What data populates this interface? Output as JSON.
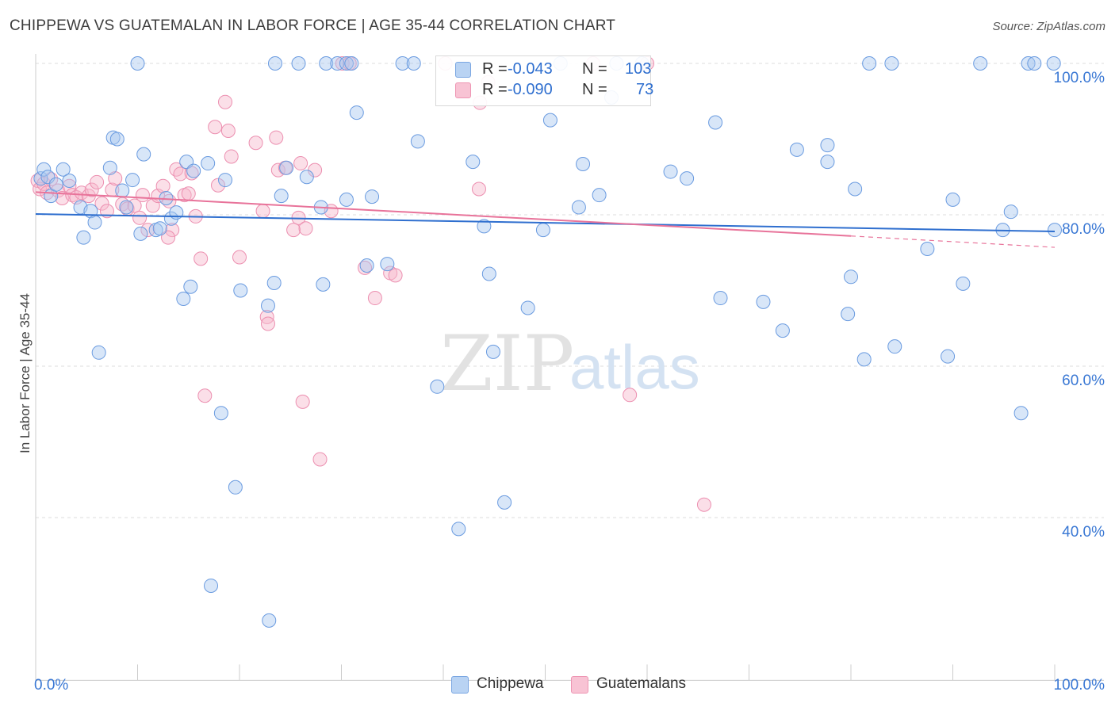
{
  "title": "CHIPPEWA VS GUATEMALAN IN LABOR FORCE | AGE 35-44 CORRELATION CHART",
  "source": "Source: ZipAtlas.com",
  "watermark": {
    "zip": "ZIP",
    "atlas": "atlas"
  },
  "legend": {
    "rows": [
      {
        "r_label": "R =",
        "r_value": "-0.043",
        "n_label": "N =",
        "n_value": "103"
      },
      {
        "r_label": "R =",
        "r_value": "-0.090",
        "n_label": "N =",
        "n_value": "73"
      }
    ]
  },
  "bottom_legend": [
    "Chippewa",
    "Guatemalans"
  ],
  "colors": {
    "chippewa_fill": "#a8c8f0",
    "chippewa_stroke": "#6a9be0",
    "chippewa_line": "#2f6fcf",
    "guatemalan_fill": "#f6b8cc",
    "guatemalan_stroke": "#ec8fb0",
    "guatemalan_line": "#e8739a",
    "axis_label": "#3a78d4",
    "grid": "#dddddd"
  },
  "chart_data": {
    "type": "scatter",
    "title": "CHIPPEWA VS GUATEMALAN IN LABOR FORCE | AGE 35-44 CORRELATION CHART",
    "xlabel": "",
    "ylabel": "In Labor Force | Age 35-44",
    "xlim": [
      0,
      100
    ],
    "ylim": [
      18.5,
      102.5
    ],
    "x_tick_labels": [
      {
        "value": 0,
        "label": "0.0%"
      },
      {
        "value": 100,
        "label": "100.0%"
      }
    ],
    "y_tick_labels": [
      {
        "value": 100,
        "label": "100.0%"
      },
      {
        "value": 80,
        "label": "80.0%"
      },
      {
        "value": 60,
        "label": "60.0%"
      },
      {
        "value": 40,
        "label": "40.0%"
      }
    ],
    "series": [
      {
        "name": "Chippewa",
        "trend": {
          "x": [
            0,
            100
          ],
          "y": [
            80.1,
            77.8
          ],
          "dashed_from": null
        },
        "points": [
          [
            0.5,
            84.8
          ],
          [
            0.8,
            86
          ],
          [
            1.2,
            85
          ],
          [
            1.5,
            82.5
          ],
          [
            2,
            84
          ],
          [
            2.7,
            86
          ],
          [
            3.3,
            84.5
          ],
          [
            4.4,
            81
          ],
          [
            5.4,
            80.5
          ],
          [
            5.8,
            79
          ],
          [
            4.7,
            77
          ],
          [
            7.3,
            86.2
          ],
          [
            7.6,
            90.2
          ],
          [
            8,
            90
          ],
          [
            8.5,
            83.2
          ],
          [
            8.9,
            81
          ],
          [
            9.5,
            84.6
          ],
          [
            10.3,
            77.5
          ],
          [
            10.6,
            88
          ],
          [
            11.8,
            78
          ],
          [
            12.2,
            78.2
          ],
          [
            12.8,
            82.2
          ],
          [
            13.3,
            79.5
          ],
          [
            13.8,
            80.3
          ],
          [
            14.8,
            87
          ],
          [
            15.5,
            85.8
          ],
          [
            16.9,
            86.8
          ],
          [
            18.6,
            84.6
          ],
          [
            14.5,
            68.9
          ],
          [
            15.2,
            70.5
          ],
          [
            20.1,
            70
          ],
          [
            22.8,
            68
          ],
          [
            23.4,
            71
          ],
          [
            24.1,
            82.5
          ],
          [
            24.6,
            86.2
          ],
          [
            26.6,
            85
          ],
          [
            28,
            81
          ],
          [
            28.2,
            70.8
          ],
          [
            30.5,
            82
          ],
          [
            31.5,
            93.5
          ],
          [
            32.5,
            73.3
          ],
          [
            33,
            82.4
          ],
          [
            34.5,
            73.5
          ],
          [
            37.5,
            89.7
          ],
          [
            10,
            100
          ],
          [
            23.5,
            100
          ],
          [
            25.8,
            100
          ],
          [
            28.5,
            100
          ],
          [
            29.6,
            100
          ],
          [
            30.5,
            100
          ],
          [
            31,
            100
          ],
          [
            36,
            100
          ],
          [
            37.1,
            100
          ],
          [
            42.9,
            87
          ],
          [
            44,
            78.5
          ],
          [
            44.5,
            72.2
          ],
          [
            48.3,
            67.7
          ],
          [
            49.8,
            78
          ],
          [
            50.5,
            92.5
          ],
          [
            51.5,
            100
          ],
          [
            53.3,
            81
          ],
          [
            53.7,
            86.7
          ],
          [
            55.3,
            82.6
          ],
          [
            56.5,
            95.5
          ],
          [
            57,
            100
          ],
          [
            59.5,
            100
          ],
          [
            62.3,
            85.7
          ],
          [
            63.9,
            84.8
          ],
          [
            66.7,
            92.2
          ],
          [
            67.2,
            69
          ],
          [
            71.4,
            68.5
          ],
          [
            73.3,
            64.7
          ],
          [
            74.7,
            88.6
          ],
          [
            77.7,
            89.2
          ],
          [
            77.7,
            87
          ],
          [
            80,
            71.8
          ],
          [
            79.7,
            66.9
          ],
          [
            80.4,
            83.4
          ],
          [
            81.3,
            60.9
          ],
          [
            84,
            100
          ],
          [
            84.3,
            62.6
          ],
          [
            87.5,
            75.5
          ],
          [
            89.5,
            61.3
          ],
          [
            90,
            82
          ],
          [
            91,
            70.9
          ],
          [
            92.7,
            100
          ],
          [
            94.9,
            78
          ],
          [
            95.7,
            80.4
          ],
          [
            96.7,
            53.8
          ],
          [
            97.4,
            100
          ],
          [
            98,
            100
          ],
          [
            99.9,
            100
          ],
          [
            100,
            78
          ],
          [
            6.2,
            61.8
          ],
          [
            18.2,
            53.8
          ],
          [
            19.6,
            44
          ],
          [
            17.2,
            31
          ],
          [
            22.9,
            26.4
          ],
          [
            39.4,
            57.3
          ],
          [
            41.5,
            38.5
          ],
          [
            44.9,
            61.9
          ],
          [
            46,
            42
          ],
          [
            81.8,
            100
          ]
        ]
      },
      {
        "name": "Guatemalans",
        "trend": {
          "x": [
            0,
            80
          ],
          "y": [
            83,
            77.2
          ],
          "dashed_x": [
            80,
            100
          ],
          "dashed_y": [
            77.2,
            75.7
          ]
        },
        "points": [
          [
            0.2,
            84.5
          ],
          [
            0.4,
            83.4
          ],
          [
            0.8,
            84.1
          ],
          [
            1.1,
            82.9
          ],
          [
            1.5,
            84.7
          ],
          [
            2.2,
            83.2
          ],
          [
            2.6,
            82.2
          ],
          [
            3.3,
            83.8
          ],
          [
            3.6,
            82.6
          ],
          [
            4,
            82.3
          ],
          [
            4.5,
            82.9
          ],
          [
            5.2,
            82.5
          ],
          [
            5.5,
            83.3
          ],
          [
            6,
            84.3
          ],
          [
            6.5,
            81.5
          ],
          [
            7,
            80.5
          ],
          [
            7.5,
            83.3
          ],
          [
            7.8,
            84.8
          ],
          [
            8.5,
            81.4
          ],
          [
            9,
            80.8
          ],
          [
            9.7,
            81.2
          ],
          [
            10.2,
            79.6
          ],
          [
            10.5,
            82.6
          ],
          [
            11,
            78
          ],
          [
            11.5,
            81.2
          ],
          [
            12,
            82.5
          ],
          [
            12.5,
            83.8
          ],
          [
            13.1,
            81.8
          ],
          [
            13.4,
            78
          ],
          [
            13.8,
            86
          ],
          [
            14.2,
            85.4
          ],
          [
            14.6,
            82.6
          ],
          [
            15,
            82.8
          ],
          [
            15.3,
            85.5
          ],
          [
            15.7,
            79.8
          ],
          [
            16.2,
            74.2
          ],
          [
            17.6,
            91.6
          ],
          [
            17.9,
            83.9
          ],
          [
            18.6,
            94.9
          ],
          [
            18.9,
            91.1
          ],
          [
            19.2,
            87.7
          ],
          [
            20,
            74.4
          ],
          [
            21.6,
            89.5
          ],
          [
            22.3,
            80.5
          ],
          [
            22.7,
            66.5
          ],
          [
            22.8,
            65.6
          ],
          [
            23.6,
            90.2
          ],
          [
            23.8,
            85.9
          ],
          [
            24.5,
            86.2
          ],
          [
            25.3,
            78
          ],
          [
            25.8,
            79.6
          ],
          [
            26,
            86.8
          ],
          [
            26.2,
            55.3
          ],
          [
            26.5,
            78.2
          ],
          [
            27.4,
            85.9
          ],
          [
            27.9,
            47.7
          ],
          [
            29,
            80.5
          ],
          [
            30.1,
            100
          ],
          [
            30.8,
            100
          ],
          [
            32.3,
            73
          ],
          [
            33.3,
            69
          ],
          [
            34.8,
            72.3
          ],
          [
            35.3,
            72
          ],
          [
            40.2,
            100
          ],
          [
            43.5,
            83.4
          ],
          [
            43.6,
            94.8
          ],
          [
            44.4,
            97.5
          ],
          [
            54.7,
            100
          ],
          [
            58.3,
            56.2
          ],
          [
            60,
            100
          ],
          [
            16.6,
            56.1
          ],
          [
            13,
            77
          ],
          [
            65.6,
            41.7
          ]
        ]
      }
    ]
  }
}
